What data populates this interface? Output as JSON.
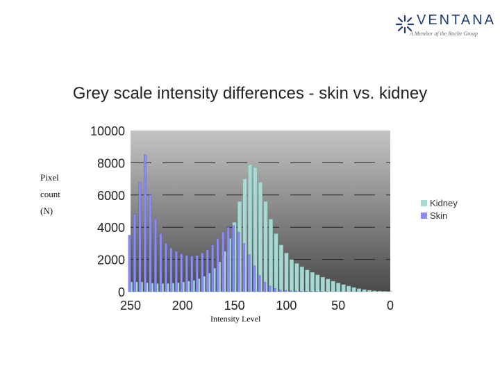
{
  "logo": {
    "word": "VENTANA",
    "tagline": "A Member of the Roche Group",
    "icon": "star-burst-icon"
  },
  "colors": {
    "kidney": "#a8d8d2",
    "skin": "#8c8cf0",
    "skin_edge": "#5a5ad0",
    "kidney_edge": "#6aa8a0",
    "plot_top": "#c4c4c4",
    "plot_bottom": "#4a4a4a",
    "gridline": "#222222"
  },
  "chart_data": {
    "type": "bar",
    "title": "Grey scale intensity differences - skin vs. kidney",
    "xlabel": "Intensity Level",
    "ylabel_lines": [
      "Pixel",
      "count",
      "(N)"
    ],
    "xlim": [
      250,
      0
    ],
    "ylim": [
      0,
      10000
    ],
    "x_ticks": [
      "250",
      "200",
      "150",
      "100",
      "50",
      "0"
    ],
    "y_ticks": [
      "0",
      "2000",
      "4000",
      "6000",
      "8000",
      "10000"
    ],
    "grid": true,
    "legend_position": "right",
    "x": [
      255,
      250,
      245,
      240,
      235,
      230,
      225,
      220,
      215,
      210,
      205,
      200,
      195,
      190,
      185,
      180,
      175,
      170,
      165,
      160,
      155,
      150,
      145,
      140,
      135,
      130,
      125,
      120,
      115,
      110,
      105,
      100,
      95,
      90,
      85,
      80,
      75,
      70,
      65,
      60,
      55,
      50,
      45,
      40,
      35,
      30,
      25,
      20,
      15,
      10,
      5,
      0
    ],
    "series": [
      {
        "name": "Kidney",
        "values": [
          600,
          600,
          600,
          600,
          550,
          520,
          500,
          500,
          500,
          520,
          550,
          600,
          650,
          700,
          800,
          950,
          1150,
          1450,
          1850,
          2500,
          3300,
          4300,
          5600,
          7000,
          7900,
          7700,
          6800,
          5600,
          4500,
          3600,
          2900,
          2400,
          2000,
          1750,
          1550,
          1350,
          1200,
          1050,
          900,
          780,
          650,
          540,
          440,
          350,
          260,
          190,
          130,
          90,
          60,
          40,
          25,
          15
        ]
      },
      {
        "name": "Skin",
        "values": [
          2000,
          3500,
          4800,
          6800,
          8500,
          6000,
          4500,
          3600,
          3000,
          2700,
          2500,
          2350,
          2250,
          2200,
          2250,
          2400,
          2600,
          2900,
          3300,
          3700,
          4000,
          4100,
          3700,
          3000,
          2300,
          1600,
          1000,
          600,
          350,
          200,
          120,
          80,
          60,
          40,
          30,
          20,
          15,
          10,
          5,
          5,
          0,
          0,
          0,
          0,
          0,
          0,
          0,
          0,
          0,
          0,
          0,
          0
        ]
      }
    ]
  }
}
